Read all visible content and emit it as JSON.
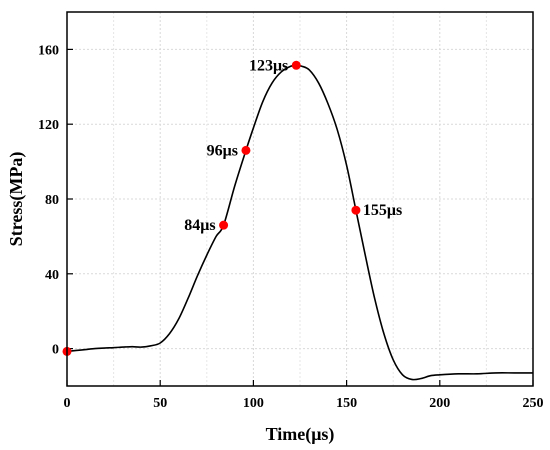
{
  "chart_data": {
    "type": "line",
    "title": "",
    "xlabel": "Time(μs)",
    "ylabel": "Stress(MPa)",
    "xlim": [
      0,
      250
    ],
    "ylim": [
      -20,
      180
    ],
    "x_ticks": [
      0,
      50,
      100,
      150,
      200,
      250
    ],
    "y_ticks": [
      0,
      40,
      80,
      120,
      160
    ],
    "x_tick_labels": [
      "0",
      "50",
      "100",
      "150",
      "200",
      "250"
    ],
    "y_tick_labels": [
      "0",
      "40",
      "80",
      "120",
      "160"
    ],
    "grid": true,
    "series": [
      {
        "x": [
          0,
          5,
          10,
          15,
          20,
          25,
          30,
          35,
          40,
          45,
          50,
          55,
          60,
          65,
          70,
          75,
          80,
          84,
          90,
          96,
          100,
          105,
          110,
          115,
          120,
          123,
          126,
          130,
          135,
          140,
          145,
          150,
          155,
          160,
          165,
          170,
          175,
          180,
          185,
          190,
          195,
          200,
          210,
          220,
          230,
          240,
          250
        ],
        "y": [
          -1.5,
          -1,
          -0.5,
          0,
          0.3,
          0.5,
          0.8,
          1.0,
          0.8,
          1.5,
          3,
          8,
          16,
          27,
          39,
          50,
          60,
          66,
          87,
          106,
          118,
          132,
          142,
          148,
          151,
          151.5,
          151,
          149,
          142,
          131,
          117,
          98,
          74,
          50,
          27,
          8,
          -6,
          -14,
          -16.5,
          -16,
          -14.5,
          -14,
          -13.5,
          -13.5,
          -13,
          -13,
          -13
        ],
        "color": "#000000"
      }
    ],
    "markers": [
      {
        "x": 0,
        "y": -1.5,
        "label": ""
      },
      {
        "x": 84,
        "y": 66,
        "label": "84μs"
      },
      {
        "x": 96,
        "y": 106,
        "label": "96μs"
      },
      {
        "x": 123,
        "y": 151.5,
        "label": "123μs"
      },
      {
        "x": 155,
        "y": 74,
        "label": "155μs"
      }
    ],
    "marker_color": "#ff0000"
  }
}
